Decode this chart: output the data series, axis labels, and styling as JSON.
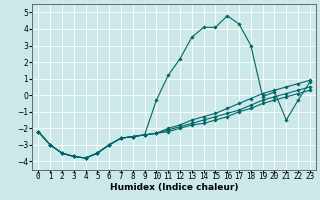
{
  "title": "",
  "xlabel": "Humidex (Indice chaleur)",
  "ylabel": "",
  "bg_color": "#cce8e8",
  "grid_color": "#ffffff",
  "line_color": "#006666",
  "xlim": [
    -0.5,
    23.5
  ],
  "ylim": [
    -4.5,
    5.5
  ],
  "yticks": [
    -4,
    -3,
    -2,
    -1,
    0,
    1,
    2,
    3,
    4,
    5
  ],
  "xticks": [
    0,
    1,
    2,
    3,
    4,
    5,
    6,
    7,
    8,
    9,
    10,
    11,
    12,
    13,
    14,
    15,
    16,
    17,
    18,
    19,
    20,
    21,
    22,
    23
  ],
  "series": [
    {
      "x": [
        0,
        1,
        2,
        3,
        4,
        5,
        6,
        7,
        8,
        9,
        10,
        11,
        12,
        13,
        14,
        15,
        16,
        17,
        18,
        19,
        20,
        21,
        22,
        23
      ],
      "y": [
        -2.2,
        -3.0,
        -3.5,
        -3.7,
        -3.8,
        -3.5,
        -3.0,
        -2.6,
        -2.5,
        -2.4,
        -0.3,
        1.2,
        2.2,
        3.5,
        4.1,
        4.1,
        4.8,
        4.3,
        3.0,
        -0.1,
        0.2,
        -1.5,
        -0.3,
        0.8
      ]
    },
    {
      "x": [
        0,
        1,
        2,
        3,
        4,
        5,
        6,
        7,
        8,
        9,
        10,
        11,
        12,
        13,
        14,
        15,
        16,
        17,
        18,
        19,
        20,
        21,
        22,
        23
      ],
      "y": [
        -2.2,
        -3.0,
        -3.5,
        -3.7,
        -3.8,
        -3.5,
        -3.0,
        -2.6,
        -2.5,
        -2.4,
        -2.3,
        -2.2,
        -2.0,
        -1.8,
        -1.7,
        -1.5,
        -1.3,
        -1.0,
        -0.8,
        -0.5,
        -0.3,
        -0.1,
        0.1,
        0.3
      ]
    },
    {
      "x": [
        0,
        1,
        2,
        3,
        4,
        5,
        6,
        7,
        8,
        9,
        10,
        11,
        12,
        13,
        14,
        15,
        16,
        17,
        18,
        19,
        20,
        21,
        22,
        23
      ],
      "y": [
        -2.2,
        -3.0,
        -3.5,
        -3.7,
        -3.8,
        -3.5,
        -3.0,
        -2.6,
        -2.5,
        -2.4,
        -2.3,
        -2.1,
        -1.9,
        -1.7,
        -1.5,
        -1.3,
        -1.1,
        -0.9,
        -0.6,
        -0.3,
        -0.1,
        0.1,
        0.3,
        0.5
      ]
    },
    {
      "x": [
        0,
        1,
        2,
        3,
        4,
        5,
        6,
        7,
        8,
        9,
        10,
        11,
        12,
        13,
        14,
        15,
        16,
        17,
        18,
        19,
        20,
        21,
        22,
        23
      ],
      "y": [
        -2.2,
        -3.0,
        -3.5,
        -3.7,
        -3.8,
        -3.5,
        -3.0,
        -2.6,
        -2.5,
        -2.4,
        -2.3,
        -2.0,
        -1.8,
        -1.5,
        -1.3,
        -1.1,
        -0.8,
        -0.5,
        -0.2,
        0.1,
        0.3,
        0.5,
        0.7,
        0.9
      ]
    }
  ],
  "marker": "D",
  "marker_size": 1.8,
  "line_width": 0.8,
  "tick_fontsize": 5.5,
  "xlabel_fontsize": 6.5,
  "xlabel_fontweight": "bold"
}
